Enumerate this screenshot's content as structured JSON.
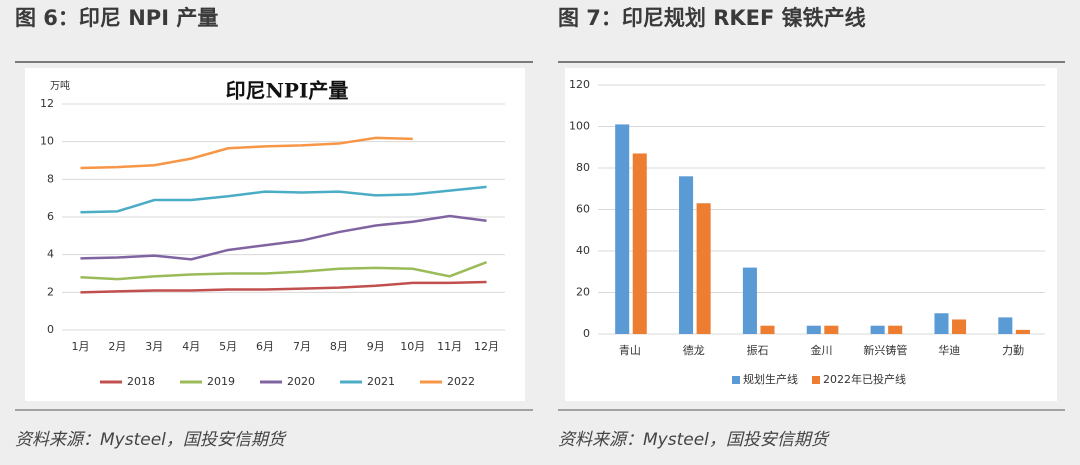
{
  "figures": [
    {
      "heading": "图 6：印尼 NPI 产量",
      "source": "资料来源：Mysteel，国投安信期货"
    },
    {
      "heading": "图 7：印尼规划 RKEF 镍铁产线",
      "source": "资料来源：Mysteel，国投安信期货"
    }
  ],
  "chart_data": [
    {
      "type": "line",
      "title": "印尼NPI产量",
      "y_label": "万吨",
      "categories": [
        "1月",
        "2月",
        "3月",
        "4月",
        "5月",
        "6月",
        "7月",
        "8月",
        "9月",
        "10月",
        "11月",
        "12月"
      ],
      "series": [
        {
          "name": "2018",
          "color": "#c0504d",
          "values": [
            2.0,
            2.05,
            2.1,
            2.1,
            2.15,
            2.15,
            2.2,
            2.25,
            2.35,
            2.5,
            2.5,
            2.55
          ]
        },
        {
          "name": "2019",
          "color": "#9bbb59",
          "values": [
            2.8,
            2.7,
            2.85,
            2.95,
            3.0,
            3.0,
            3.1,
            3.25,
            3.3,
            3.25,
            2.85,
            3.6
          ]
        },
        {
          "name": "2020",
          "color": "#8064a2",
          "values": [
            3.8,
            3.85,
            3.95,
            3.75,
            4.25,
            4.5,
            4.75,
            5.2,
            5.55,
            5.75,
            6.05,
            5.8
          ]
        },
        {
          "name": "2021",
          "color": "#4bacc6",
          "values": [
            6.25,
            6.3,
            6.9,
            6.9,
            7.1,
            7.35,
            7.3,
            7.35,
            7.15,
            7.2,
            7.4,
            7.6
          ]
        },
        {
          "name": "2022",
          "color": "#f79646",
          "values": [
            8.6,
            8.65,
            8.75,
            9.1,
            9.65,
            9.75,
            9.8,
            9.9,
            10.2,
            10.15,
            null,
            null
          ]
        }
      ],
      "ylim": [
        0,
        12
      ],
      "yticks": [
        0,
        2,
        4,
        6,
        8,
        10,
        12
      ],
      "grid": true,
      "legend": "bottom"
    },
    {
      "type": "bar",
      "categories": [
        "青山",
        "德龙",
        "振石",
        "金川",
        "新兴铸管",
        "华迪",
        "力勤"
      ],
      "series": [
        {
          "name": "规划生产线",
          "color": "#5b9bd5",
          "values": [
            101,
            76,
            32,
            4,
            4,
            10,
            8
          ]
        },
        {
          "name": "2022年已投产线",
          "color": "#ed7d31",
          "values": [
            87,
            63,
            4,
            4,
            4,
            7,
            2
          ]
        }
      ],
      "ylim": [
        0,
        120
      ],
      "yticks": [
        0,
        20,
        40,
        60,
        80,
        100,
        120
      ],
      "grid": true,
      "legend": "bottom"
    }
  ]
}
